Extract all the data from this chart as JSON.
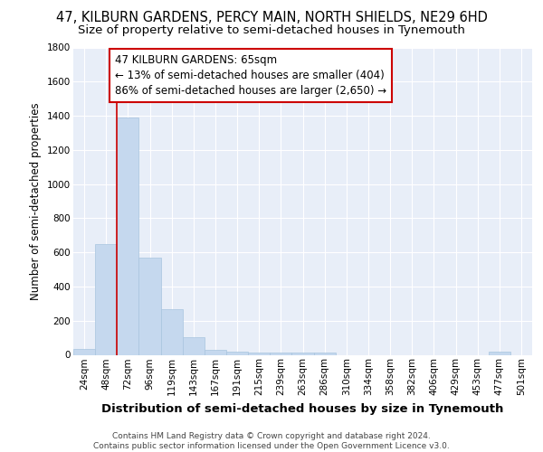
{
  "title_line1": "47, KILBURN GARDENS, PERCY MAIN, NORTH SHIELDS, NE29 6HD",
  "title_line2": "Size of property relative to semi-detached houses in Tynemouth",
  "xlabel": "Distribution of semi-detached houses by size in Tynemouth",
  "ylabel": "Number of semi-detached properties",
  "categories": [
    "24sqm",
    "48sqm",
    "72sqm",
    "96sqm",
    "119sqm",
    "143sqm",
    "167sqm",
    "191sqm",
    "215sqm",
    "239sqm",
    "263sqm",
    "286sqm",
    "310sqm",
    "334sqm",
    "358sqm",
    "382sqm",
    "406sqm",
    "429sqm",
    "453sqm",
    "477sqm",
    "501sqm"
  ],
  "values": [
    35,
    650,
    1390,
    570,
    270,
    105,
    30,
    20,
    15,
    15,
    15,
    15,
    0,
    0,
    0,
    0,
    0,
    0,
    0,
    20,
    0
  ],
  "bar_color": "#c5d8ee",
  "bar_edge_color": "#a8c4de",
  "vline_color": "#cc0000",
  "vline_x": 1.5,
  "annotation_text": "47 KILBURN GARDENS: 65sqm\n← 13% of semi-detached houses are smaller (404)\n86% of semi-detached houses are larger (2,650) →",
  "annotation_box_color": "#ffffff",
  "annotation_box_edge": "#cc0000",
  "ylim": [
    0,
    1800
  ],
  "yticks": [
    0,
    200,
    400,
    600,
    800,
    1000,
    1200,
    1400,
    1600,
    1800
  ],
  "footer_text": "Contains HM Land Registry data © Crown copyright and database right 2024.\nContains public sector information licensed under the Open Government Licence v3.0.",
  "fig_bg_color": "#ffffff",
  "axes_bg_color": "#e8eef8",
  "grid_color": "#ffffff",
  "title_fontsize": 10.5,
  "subtitle_fontsize": 9.5,
  "tick_fontsize": 7.5,
  "ylabel_fontsize": 8.5,
  "xlabel_fontsize": 9.5,
  "annot_fontsize": 8.5,
  "footer_fontsize": 6.5
}
